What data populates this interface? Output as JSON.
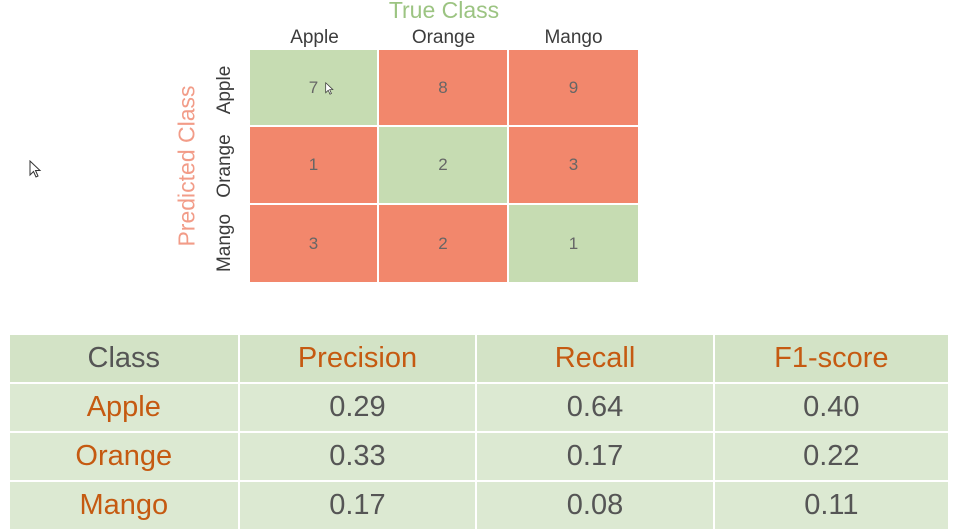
{
  "chart_data": [
    {
      "type": "heatmap",
      "title": "True Class",
      "xlabel": "True Class",
      "ylabel": "Predicted Class",
      "x_categories": [
        "Apple",
        "Orange",
        "Mango"
      ],
      "y_categories": [
        "Apple",
        "Orange",
        "Mango"
      ],
      "values": [
        [
          7,
          8,
          9
        ],
        [
          1,
          2,
          3
        ],
        [
          3,
          2,
          1
        ]
      ],
      "colors": {
        "diagonal": "#c6dcb2",
        "off_diagonal": "#f2876c"
      }
    },
    {
      "type": "table",
      "columns": [
        "Class",
        "Precision",
        "Recall",
        "F1-score"
      ],
      "rows": [
        {
          "label": "Apple",
          "precision": "0.29",
          "recall": "0.64",
          "f1": "0.40"
        },
        {
          "label": "Orange",
          "precision": "0.33",
          "recall": "0.17",
          "f1": "0.22"
        },
        {
          "label": "Mango",
          "precision": "0.17",
          "recall": "0.08",
          "f1": "0.11"
        }
      ]
    }
  ],
  "icons": {
    "cursor_left": "mouse-pointer-icon",
    "cursor_matrix": "mouse-pointer-icon"
  }
}
